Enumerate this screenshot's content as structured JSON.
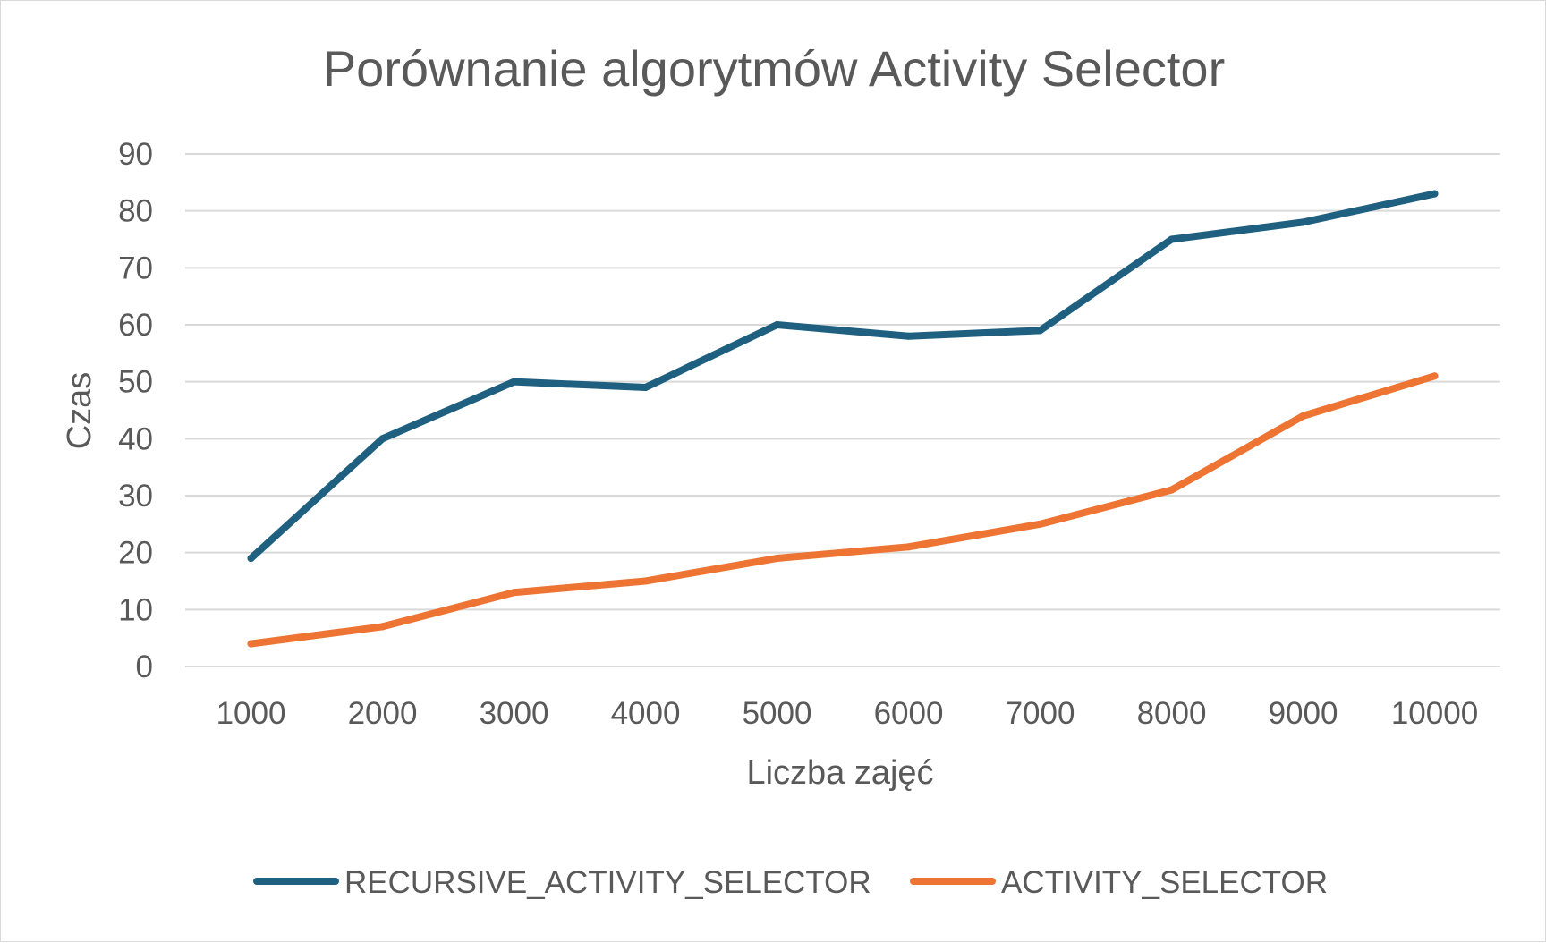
{
  "chart_data": {
    "type": "line",
    "title": "Porównanie  algorytmów Activity Selector",
    "xlabel": "Liczba zajęć",
    "ylabel": "Czas",
    "categories": [
      "1000",
      "2000",
      "3000",
      "4000",
      "5000",
      "6000",
      "7000",
      "8000",
      "9000",
      "10000"
    ],
    "ylim": [
      0,
      90
    ],
    "yticks": [
      "0",
      "10",
      "20",
      "30",
      "40",
      "50",
      "60",
      "70",
      "80",
      "90"
    ],
    "grid": true,
    "legend_position": "bottom",
    "series": [
      {
        "name": "RECURSIVE_ACTIVITY_SELECTOR",
        "color": "#1f5f7f",
        "values": [
          19,
          40,
          50,
          49,
          60,
          58,
          59,
          75,
          78,
          83
        ]
      },
      {
        "name": "ACTIVITY_SELECTOR",
        "color": "#ed7433",
        "values": [
          4,
          7,
          13,
          15,
          19,
          21,
          25,
          31,
          44,
          51
        ]
      }
    ]
  }
}
